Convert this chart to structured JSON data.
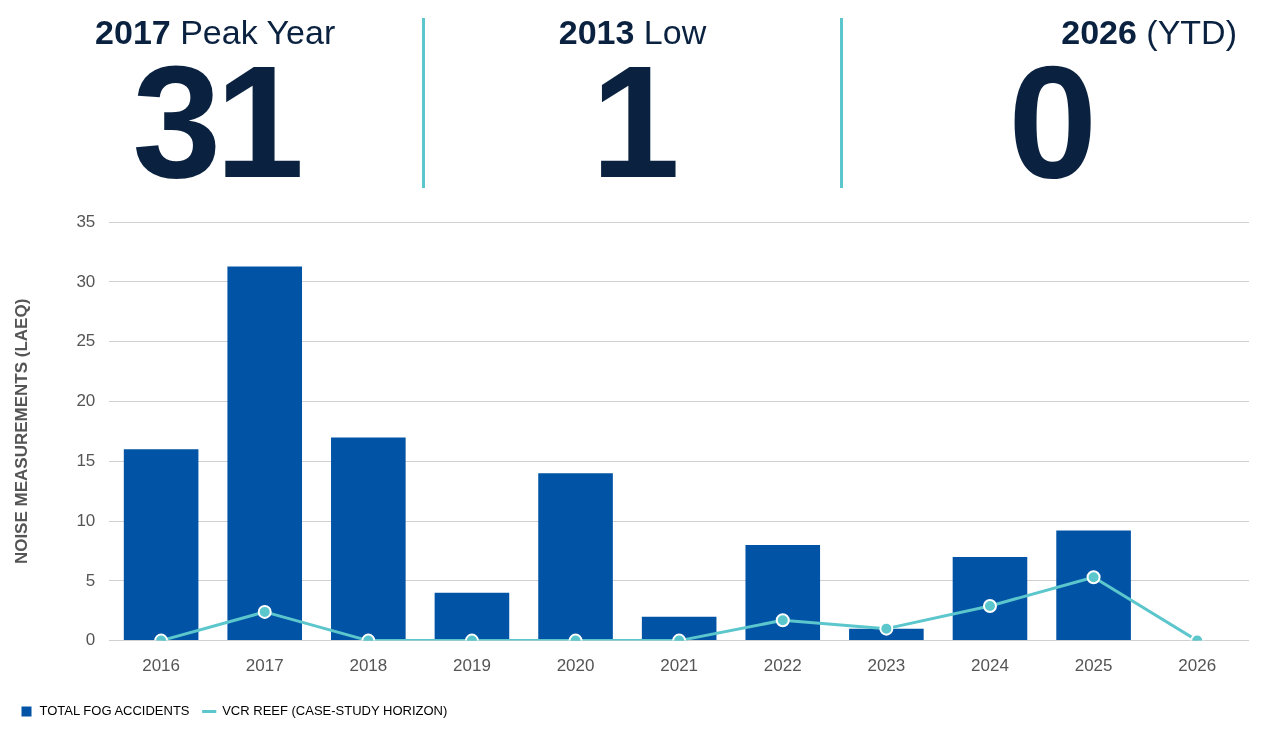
{
  "chart_data": [
    {
      "type": "other",
      "annotations": [
        "2017 Peak Year",
        "31",
        "2013 Low",
        "1",
        "2026 (YTD)",
        "0"
      ]
    },
    {
      "type": "bar",
      "ylabel": "NOISE MEASUREMENTS (LAEQ)",
      "categories": [
        "2016",
        "2017",
        "2018",
        "2019",
        "2020",
        "2021",
        "2022",
        "2023",
        "2024",
        "2025",
        "2026"
      ],
      "series": [
        {
          "name": "TOTAL FOG ACCIDENTS",
          "type": "bar",
          "color": "#0053a5",
          "values": [
            16,
            31.3,
            17,
            4,
            14,
            2,
            8,
            1,
            7,
            9.2,
            0
          ]
        },
        {
          "name": "VCR REEF (CASE-STUDY HORIZON)",
          "type": "line",
          "color": "#5bc6cc",
          "marker": "circle",
          "values": [
            0,
            2.4,
            0,
            0,
            0,
            0,
            1.7,
            1,
            2.9,
            5.3,
            0
          ]
        }
      ],
      "ylim": [
        0,
        35
      ],
      "yticks": [
        0,
        5,
        10,
        15,
        20,
        25,
        30,
        35
      ],
      "grid": "y",
      "legend": "bottom left"
    }
  ]
}
